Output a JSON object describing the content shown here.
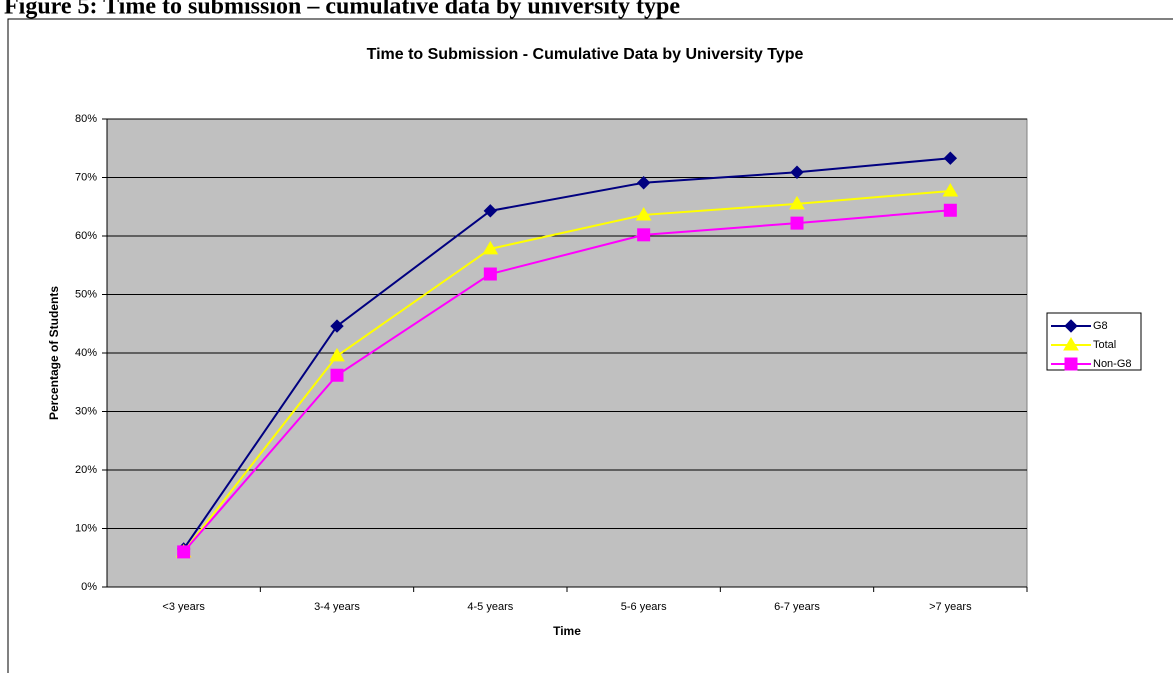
{
  "caption": "Figure 5: Time to submission – cumulative data by university type",
  "chart_data": {
    "type": "line",
    "title": "Time to Submission - Cumulative Data by University Type",
    "x_label": "Time",
    "y_label": "Percentage of Students",
    "categories": [
      "<3 years",
      "3-4 years",
      "4-5 years",
      "5-6 years",
      "6-7 years",
      ">7 years"
    ],
    "series": [
      {
        "name": "G8",
        "color": "#000080",
        "marker": "diamond",
        "values": [
          6.5,
          44.6,
          64.3,
          69.1,
          70.9,
          73.3
        ]
      },
      {
        "name": "Total",
        "color": "#FFFF00",
        "marker": "triangle",
        "values": [
          6.0,
          39.5,
          57.8,
          63.6,
          65.5,
          67.7
        ]
      },
      {
        "name": "Non-G8",
        "color": "#FF00FF",
        "marker": "square",
        "values": [
          6.0,
          36.2,
          53.5,
          60.2,
          62.2,
          64.4
        ]
      }
    ],
    "ylim": [
      0,
      80
    ],
    "yticks": [
      {
        "value": 0,
        "label": "0%"
      },
      {
        "value": 10,
        "label": "10%"
      },
      {
        "value": 20,
        "label": "20%"
      },
      {
        "value": 30,
        "label": "30%"
      },
      {
        "value": 40,
        "label": "40%"
      },
      {
        "value": 50,
        "label": "50%"
      },
      {
        "value": 60,
        "label": "60%"
      },
      {
        "value": 70,
        "label": "70%"
      },
      {
        "value": 80,
        "label": "80%"
      }
    ],
    "grid": true,
    "legend": "right"
  }
}
